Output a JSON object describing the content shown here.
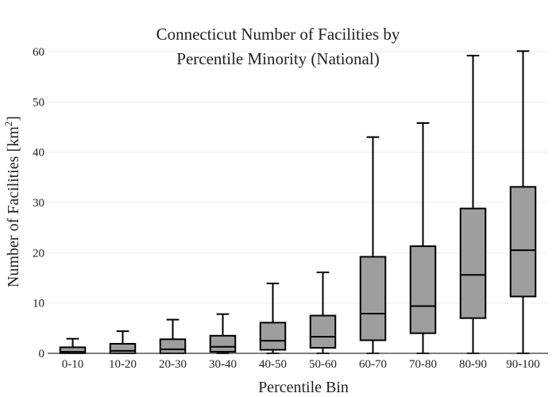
{
  "chart_data": {
    "type": "box",
    "title_lines": [
      "Connecticut Number of Facilities by",
      "Percentile Minority (National)"
    ],
    "xlabel": "Percentile Bin",
    "ylabel": "Number of Facilities  [km",
    "ylabel_sup": "2",
    "ylabel_end": "]",
    "ylim": [
      0,
      60
    ],
    "yticks": [
      0,
      10,
      20,
      30,
      40,
      50,
      60
    ],
    "grid": true,
    "categories": [
      "0-10",
      "10-20",
      "20-30",
      "30-40",
      "40-50",
      "50-60",
      "60-70",
      "70-80",
      "80-90",
      "90-100"
    ],
    "boxes": [
      {
        "min": 0,
        "q1": 0,
        "median": 0.3,
        "q3": 1.2,
        "max": 2.9
      },
      {
        "min": 0,
        "q1": 0,
        "median": 0.5,
        "q3": 1.9,
        "max": 4.4
      },
      {
        "min": 0,
        "q1": 0,
        "median": 0.8,
        "q3": 2.8,
        "max": 6.7
      },
      {
        "min": 0,
        "q1": 0.3,
        "median": 1.3,
        "q3": 3.5,
        "max": 7.8
      },
      {
        "min": 0,
        "q1": 0.7,
        "median": 2.5,
        "q3": 6.1,
        "max": 13.9
      },
      {
        "min": 0,
        "q1": 1.1,
        "median": 3.3,
        "q3": 7.5,
        "max": 16.1
      },
      {
        "min": 0,
        "q1": 2.6,
        "median": 7.9,
        "q3": 19.2,
        "max": 43
      },
      {
        "min": 0,
        "q1": 4,
        "median": 9.4,
        "q3": 21.3,
        "max": 45.8
      },
      {
        "min": 0,
        "q1": 7,
        "median": 15.6,
        "q3": 28.8,
        "max": 59.2
      },
      {
        "min": 0,
        "q1": 11.3,
        "median": 20.5,
        "q3": 33.1,
        "max": 60.1
      }
    ]
  }
}
